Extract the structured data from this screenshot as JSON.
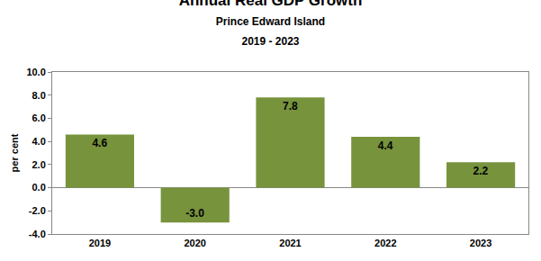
{
  "chart_data": {
    "type": "bar",
    "title": "Annual Real GDP Growth",
    "subtitle": [
      "Prince Edward Island",
      "2019 - 2023"
    ],
    "y_label": "per cent",
    "categories": [
      "2019",
      "2020",
      "2021",
      "2022",
      "2023"
    ],
    "values": [
      4.6,
      -3.0,
      7.8,
      4.4,
      2.2
    ],
    "value_labels": [
      "4.6",
      "-3.0",
      "7.8",
      "4.4",
      "2.2"
    ],
    "data_labels": true,
    "color": "#77933c",
    "ylim": [
      -4,
      10
    ],
    "yticks": [
      {
        "value": -4,
        "label": "-4.0"
      },
      {
        "value": -2,
        "label": "-2.0"
      },
      {
        "value": 0,
        "label": "0.0"
      },
      {
        "value": 2,
        "label": "2.0"
      },
      {
        "value": 4,
        "label": "4.0"
      },
      {
        "value": 6,
        "label": "6.0"
      },
      {
        "value": 8,
        "label": "8.0"
      },
      {
        "value": 10,
        "label": "10.0"
      }
    ],
    "grid": false
  }
}
